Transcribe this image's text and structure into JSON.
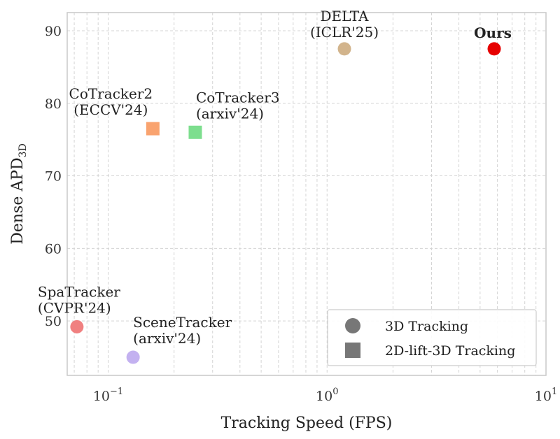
{
  "chart_data": {
    "type": "scatter",
    "xlabel": "Tracking Speed (FPS)",
    "ylabel": "Dense APD",
    "ylabel_subscript": "3D",
    "x_scale": "log",
    "xlim": [
      0.065,
      10
    ],
    "ylim": [
      42.5,
      92.5
    ],
    "x_ticks": [
      {
        "value": 0.1,
        "base": "10",
        "exp": "−1"
      },
      {
        "value": 1,
        "base": "10",
        "exp": "0"
      },
      {
        "value": 10,
        "base": "10",
        "exp": "1"
      }
    ],
    "y_ticks": [
      50,
      60,
      70,
      80,
      90
    ],
    "grid": true,
    "points": [
      {
        "name": "DELTA",
        "sub": "(ICLR'25)",
        "x": 1.2,
        "y": 87.5,
        "shape": "circle",
        "color": "#d2b48c"
      },
      {
        "name": "Ours",
        "sub": "",
        "x": 5.8,
        "y": 87.5,
        "shape": "circle",
        "color": "#e60000",
        "label_color": "#e60000",
        "bold": true
      },
      {
        "name": "CoTracker2",
        "sub": "(ECCV'24)",
        "x": 0.16,
        "y": 76.5,
        "shape": "square",
        "color": "#f9a36f"
      },
      {
        "name": "CoTracker3",
        "sub": "(arxiv'24)",
        "x": 0.25,
        "y": 76.0,
        "shape": "square",
        "color": "#7dde8e"
      },
      {
        "name": "SpaTracker",
        "sub": "(CVPR'24)",
        "x": 0.072,
        "y": 49.2,
        "shape": "circle",
        "color": "#f08080"
      },
      {
        "name": "SceneTracker",
        "sub": "(arxiv'24)",
        "x": 0.13,
        "y": 45.0,
        "shape": "circle",
        "color": "#c3b1f0"
      }
    ],
    "legend": {
      "placement": "lower-right",
      "entries": [
        {
          "label": "3D Tracking",
          "shape": "circle",
          "color": "#777777"
        },
        {
          "label": "2D-lift-3D Tracking",
          "shape": "square",
          "color": "#777777"
        }
      ]
    }
  }
}
